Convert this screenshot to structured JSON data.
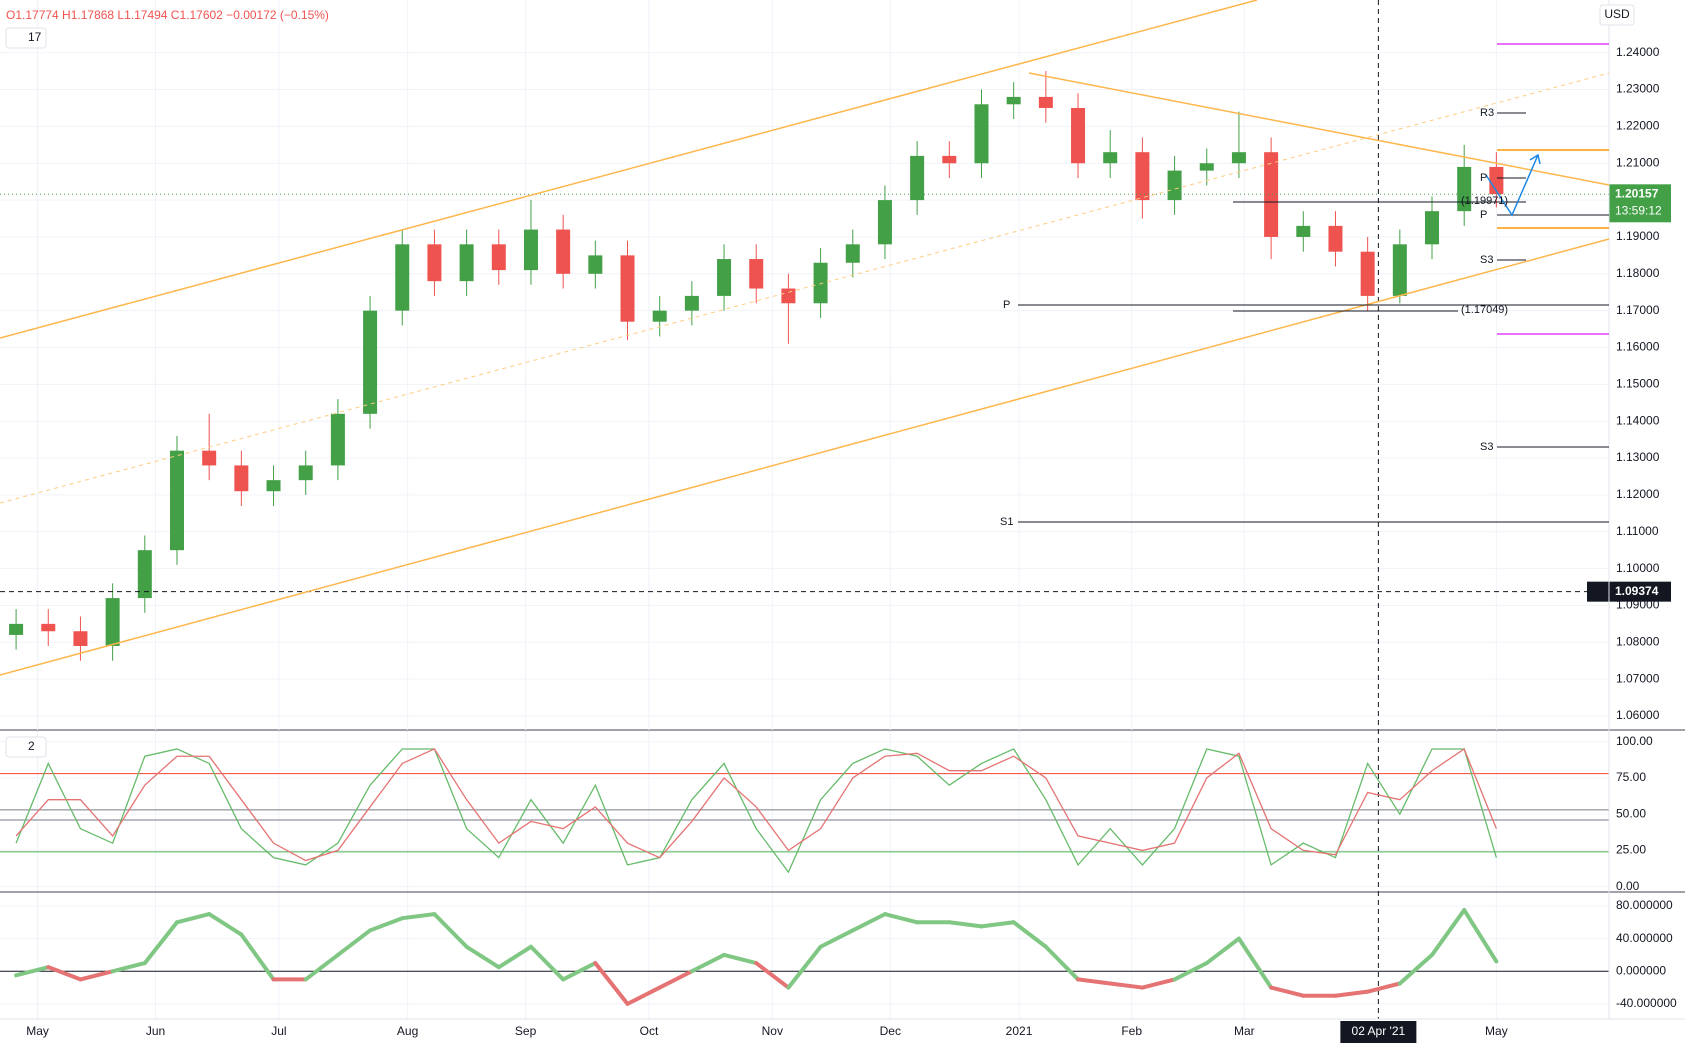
{
  "header": {
    "ohlc": "O1.17774 H1.17868 L1.17494 C1.17602 −0.00172 (−0.15%)",
    "currency": "USD",
    "countdown": "13:59:12"
  },
  "annotations": [
    "P",
    "R3",
    "S3",
    "S3",
    "S1",
    "P",
    "P",
    "(1.19971)",
    "(1.17049)"
  ],
  "chart_data": [
    {
      "type": "candlestick",
      "legend": "17",
      "up_color": "#43a047",
      "down_color": "#ef5350",
      "x": [
        3,
        9,
        15,
        21,
        27,
        33,
        39,
        45,
        51,
        57,
        63,
        69,
        75,
        81,
        87,
        93,
        99,
        105,
        111,
        117,
        123,
        129,
        135,
        141,
        147,
        153,
        159,
        165,
        171,
        177,
        183,
        189,
        195,
        201,
        207,
        213,
        219,
        225,
        231,
        237,
        243,
        249,
        255,
        261,
        267,
        273,
        279
      ],
      "open": [
        1.082,
        1.085,
        1.083,
        1.079,
        1.092,
        1.105,
        1.132,
        1.128,
        1.121,
        1.124,
        1.128,
        1.142,
        1.17,
        1.188,
        1.178,
        1.188,
        1.181,
        1.192,
        1.18,
        1.185,
        1.167,
        1.17,
        1.174,
        1.184,
        1.176,
        1.172,
        1.183,
        1.188,
        1.2,
        1.212,
        1.21,
        1.226,
        1.228,
        1.225,
        1.21,
        1.213,
        1.2,
        1.208,
        1.21,
        1.213,
        1.19,
        1.193,
        1.186,
        1.174,
        1.188,
        1.197,
        1.209
      ],
      "high": [
        1.089,
        1.089,
        1.087,
        1.096,
        1.109,
        1.136,
        1.142,
        1.132,
        1.128,
        1.132,
        1.146,
        1.174,
        1.192,
        1.192,
        1.192,
        1.192,
        1.2,
        1.196,
        1.189,
        1.189,
        1.174,
        1.178,
        1.188,
        1.188,
        1.18,
        1.187,
        1.192,
        1.204,
        1.216,
        1.216,
        1.23,
        1.232,
        1.235,
        1.229,
        1.219,
        1.217,
        1.212,
        1.214,
        1.224,
        1.217,
        1.197,
        1.197,
        1.19,
        1.192,
        1.201,
        1.215,
        1.213
      ],
      "low": [
        1.078,
        1.079,
        1.075,
        1.075,
        1.088,
        1.101,
        1.124,
        1.117,
        1.117,
        1.12,
        1.124,
        1.138,
        1.166,
        1.174,
        1.174,
        1.177,
        1.177,
        1.176,
        1.176,
        1.162,
        1.163,
        1.166,
        1.17,
        1.172,
        1.161,
        1.168,
        1.179,
        1.184,
        1.196,
        1.206,
        1.206,
        1.222,
        1.221,
        1.206,
        1.206,
        1.195,
        1.196,
        1.204,
        1.206,
        1.184,
        1.186,
        1.182,
        1.17,
        1.172,
        1.184,
        1.193,
        1.198
      ],
      "close": [
        1.085,
        1.083,
        1.079,
        1.092,
        1.105,
        1.132,
        1.128,
        1.121,
        1.124,
        1.128,
        1.142,
        1.17,
        1.188,
        1.178,
        1.188,
        1.181,
        1.192,
        1.18,
        1.185,
        1.167,
        1.17,
        1.174,
        1.184,
        1.176,
        1.172,
        1.183,
        1.188,
        1.2,
        1.212,
        1.21,
        1.226,
        1.228,
        1.225,
        1.21,
        1.213,
        1.2,
        1.208,
        1.21,
        1.213,
        1.19,
        1.193,
        1.186,
        1.174,
        1.188,
        1.197,
        1.209,
        1.2016
      ],
      "xlim": [
        0,
        300
      ],
      "ylim": [
        1.0562,
        1.2543
      ],
      "xticks": [
        {
          "value": 7,
          "label": "May"
        },
        {
          "value": 29,
          "label": "Jun"
        },
        {
          "value": 52,
          "label": "Jul"
        },
        {
          "value": 76,
          "label": "Aug"
        },
        {
          "value": 98,
          "label": "Sep"
        },
        {
          "value": 121,
          "label": "Oct"
        },
        {
          "value": 144,
          "label": "Nov"
        },
        {
          "value": 166,
          "label": "Dec"
        },
        {
          "value": 190,
          "label": "2021"
        },
        {
          "value": 211,
          "label": "Feb"
        },
        {
          "value": 232,
          "label": "Mar"
        },
        {
          "value": 279,
          "label": "May"
        }
      ],
      "crosshair_x": {
        "value": 257,
        "label": "02 Apr '21"
      },
      "yticks": [
        {
          "value": 1.06,
          "label": "1.06000"
        },
        {
          "value": 1.07,
          "label": "1.07000"
        },
        {
          "value": 1.08,
          "label": "1.08000"
        },
        {
          "value": 1.09,
          "label": "1.09000"
        },
        {
          "value": 1.1,
          "label": "1.10000"
        },
        {
          "value": 1.11,
          "label": "1.11000"
        },
        {
          "value": 1.12,
          "label": "1.12000"
        },
        {
          "value": 1.13,
          "label": "1.13000"
        },
        {
          "value": 1.14,
          "label": "1.14000"
        },
        {
          "value": 1.15,
          "label": "1.15000"
        },
        {
          "value": 1.16,
          "label": "1.16000"
        },
        {
          "value": 1.17,
          "label": "1.17000"
        },
        {
          "value": 1.18,
          "label": "1.18000"
        },
        {
          "value": 1.19,
          "label": "1.19000"
        },
        {
          "value": 1.2,
          "label": "1.20000"
        },
        {
          "value": 1.21,
          "label": "1.21000"
        },
        {
          "value": 1.22,
          "label": "1.22000"
        },
        {
          "value": 1.23,
          "label": "1.23000"
        },
        {
          "value": 1.24,
          "label": "1.24000"
        }
      ],
      "last_price": {
        "value": 1.20157,
        "label": "1.20157"
      },
      "crosshair_y": {
        "value": 1.09374,
        "label": "1.09374"
      },
      "grid": true
    },
    {
      "type": "line",
      "legend": "2",
      "x": [
        3,
        9,
        15,
        21,
        27,
        33,
        39,
        45,
        51,
        57,
        63,
        69,
        75,
        81,
        87,
        93,
        99,
        105,
        111,
        117,
        123,
        129,
        135,
        141,
        147,
        153,
        159,
        165,
        171,
        177,
        183,
        189,
        195,
        201,
        207,
        213,
        219,
        225,
        231,
        237,
        243,
        249,
        255,
        261,
        267,
        273,
        279
      ],
      "series": [
        {
          "color": "#66bb6a",
          "values": [
            30,
            85,
            40,
            30,
            90,
            95,
            85,
            40,
            20,
            15,
            30,
            70,
            95,
            95,
            40,
            20,
            60,
            30,
            70,
            15,
            20,
            60,
            85,
            40,
            10,
            60,
            85,
            95,
            90,
            70,
            85,
            95,
            60,
            15,
            40,
            15,
            40,
            95,
            90,
            15,
            30,
            20,
            85,
            50,
            95,
            95,
            20
          ]
        },
        {
          "color": "#e57373",
          "values": [
            35,
            60,
            60,
            35,
            70,
            90,
            90,
            60,
            30,
            18,
            25,
            55,
            85,
            95,
            60,
            30,
            45,
            40,
            55,
            30,
            20,
            45,
            75,
            55,
            25,
            40,
            75,
            90,
            92,
            80,
            80,
            90,
            75,
            35,
            30,
            25,
            30,
            75,
            92,
            40,
            25,
            22,
            65,
            60,
            80,
            95,
            40
          ]
        }
      ],
      "levels": [
        {
          "value": 78,
          "color": "#f44336"
        },
        {
          "value": 53,
          "color": "#787b86"
        },
        {
          "value": 46,
          "color": "#787b86"
        },
        {
          "value": 24,
          "color": "#4caf50"
        }
      ],
      "xlim": [
        0,
        300
      ],
      "ylim": [
        -3.7,
        107.4
      ],
      "yticks": [
        {
          "value": 0,
          "label": "0.00"
        },
        {
          "value": 25,
          "label": "25.00"
        },
        {
          "value": 50,
          "label": "50.00"
        },
        {
          "value": 75,
          "label": "75.00"
        },
        {
          "value": 100,
          "label": "100.00"
        }
      ]
    },
    {
      "type": "signed_line",
      "pos_color": "#81c784",
      "neg_color": "#e57373",
      "x": [
        3,
        9,
        15,
        21,
        27,
        33,
        39,
        45,
        51,
        57,
        63,
        69,
        75,
        81,
        87,
        93,
        99,
        105,
        111,
        117,
        123,
        129,
        135,
        141,
        147,
        153,
        159,
        165,
        171,
        177,
        183,
        189,
        195,
        201,
        207,
        213,
        219,
        225,
        231,
        237,
        243,
        249,
        255,
        261,
        267,
        273,
        279
      ],
      "values": [
        -5,
        5,
        -10,
        0,
        10,
        60,
        70,
        45,
        -10,
        -10,
        20,
        50,
        65,
        70,
        30,
        5,
        30,
        -10,
        10,
        -40,
        -20,
        0,
        20,
        10,
        -20,
        30,
        50,
        70,
        60,
        60,
        55,
        60,
        30,
        -10,
        -15,
        -20,
        -10,
        10,
        40,
        -20,
        -30,
        -30,
        -25,
        -15,
        20,
        75,
        12
      ],
      "xlim": [
        0,
        300
      ],
      "ylim": [
        -58.5,
        97.1
      ],
      "yticks": [
        {
          "value": -40,
          "label": "-40.000000"
        },
        {
          "value": 0,
          "label": "0.000000"
        },
        {
          "value": 40,
          "label": "40.000000"
        },
        {
          "value": 80,
          "label": "80.000000"
        }
      ]
    }
  ]
}
